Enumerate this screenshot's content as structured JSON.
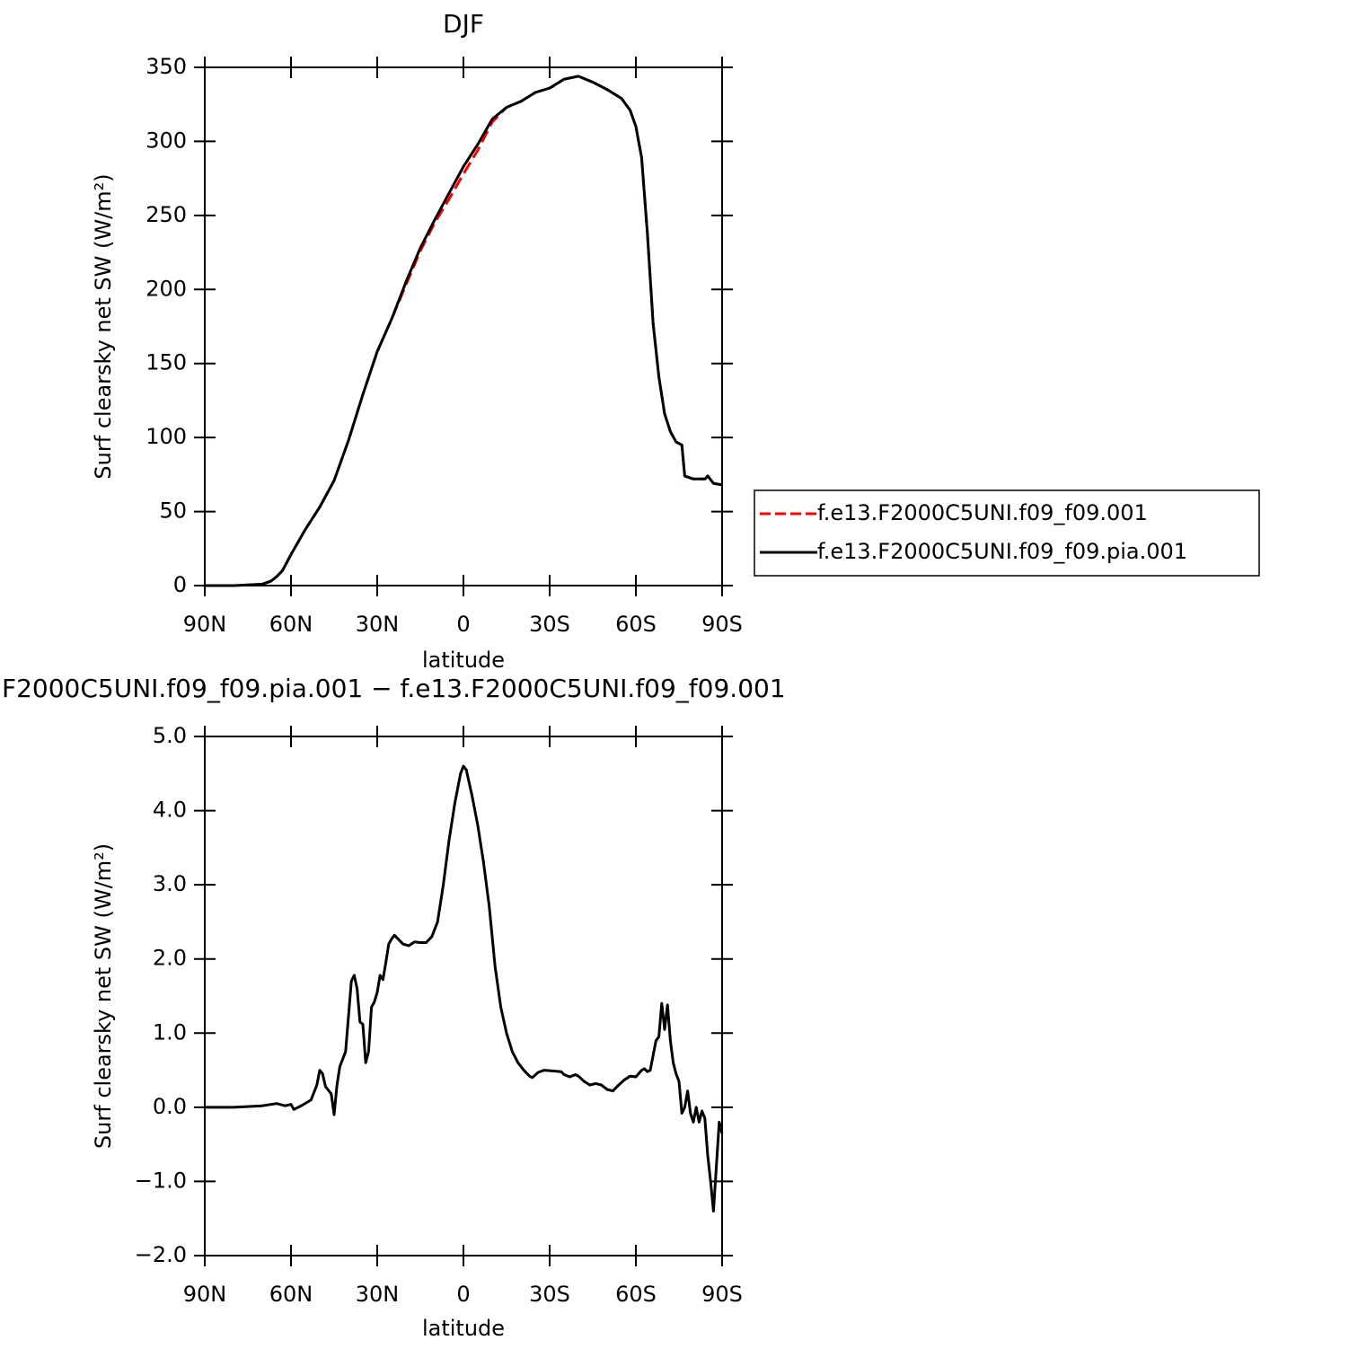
{
  "chart_data": [
    {
      "type": "line",
      "title": "DJF",
      "xlabel": "latitude",
      "ylabel": "Surf clearsky net SW (W/m²)",
      "x": [
        90,
        80,
        75,
        70,
        67,
        65,
        63,
        60,
        55,
        50,
        45,
        40,
        35,
        30,
        25,
        20,
        15,
        10,
        5,
        0,
        -5,
        -10,
        -15,
        -20,
        -25,
        -30,
        -35,
        -40,
        -45,
        -50,
        -55,
        -58,
        -60,
        -62,
        -64,
        -66,
        -68,
        -70,
        -72,
        -74,
        -76,
        -77,
        -80,
        -84,
        -85,
        -87,
        -90
      ],
      "series": [
        {
          "name": "f.e13.F2000C5UNI.f09_f09.001",
          "color": "#ff0000",
          "dashed": true,
          "values": [
            0,
            0,
            0.5,
            1,
            3,
            6,
            10,
            21,
            38,
            53,
            71,
            98,
            129,
            158,
            180,
            203,
            226,
            245,
            261,
            278,
            294,
            313,
            323,
            327,
            333,
            336,
            342,
            344,
            340,
            335,
            329,
            321,
            310,
            289,
            238,
            177,
            141,
            116,
            104,
            97,
            95,
            74,
            72,
            72,
            74,
            69,
            68
          ]
        },
        {
          "name": "f.e13.F2000C5UNI.f09_f09.pia.001",
          "color": "#000000",
          "dashed": false,
          "values": [
            0,
            0,
            0.5,
            1,
            3,
            6,
            10,
            21,
            38,
            53,
            71,
            98,
            129,
            158,
            180,
            205,
            228,
            247,
            265,
            283,
            298,
            315,
            323,
            327,
            333,
            336,
            342,
            344,
            340,
            335,
            329,
            321,
            310,
            289,
            238,
            177,
            141,
            116,
            104,
            97,
            95,
            74,
            72,
            72,
            74,
            69,
            68
          ]
        }
      ],
      "xlim": [
        90,
        -90
      ],
      "xticks": [
        {
          "value": 90,
          "label": "90N"
        },
        {
          "value": 60,
          "label": "60N"
        },
        {
          "value": 30,
          "label": "30N"
        },
        0,
        {
          "value": -30,
          "label": "30S"
        },
        {
          "value": -60,
          "label": "60S"
        },
        {
          "value": -90,
          "label": "90S"
        }
      ],
      "ylim": [
        0,
        350
      ],
      "yticks": [
        0,
        50,
        100,
        150,
        200,
        250,
        300,
        350
      ],
      "legend": "right"
    },
    {
      "type": "line",
      "title": "F2000C5UNI.f09_f09.pia.001 − f.e13.F2000C5UNI.f09_f09.001",
      "xlabel": "latitude",
      "ylabel": "Surf clearsky net SW (W/m²)",
      "x": [
        90,
        80,
        70,
        65,
        62,
        60,
        59,
        56,
        53,
        51,
        50,
        49,
        48,
        46,
        45,
        44,
        43,
        41,
        39,
        38,
        37,
        36,
        35,
        34,
        33,
        32,
        31,
        30,
        29,
        28,
        27,
        26,
        25,
        24,
        23,
        21,
        19,
        17,
        15,
        13,
        11,
        9,
        7,
        5,
        3,
        1,
        0,
        -1,
        -3,
        -5,
        -7,
        -9,
        -11,
        -13,
        -15,
        -17,
        -19,
        -21,
        -23,
        -24,
        -26,
        -28,
        -31,
        -34,
        -35,
        -37,
        -39,
        -40,
        -42,
        -44,
        -46,
        -48,
        -50,
        -52,
        -54,
        -56,
        -58,
        -60,
        -62,
        -63,
        -64,
        -65,
        -67,
        -68,
        -69,
        -70,
        -71,
        -72,
        -73,
        -74,
        -75,
        -76,
        -77,
        -78,
        -79,
        -80,
        -81,
        -82,
        -83,
        -84,
        -85,
        -86,
        -87,
        -88,
        -89,
        -90
      ],
      "values": [
        0,
        0,
        0.02,
        0.05,
        0.02,
        0.04,
        -0.03,
        0.03,
        0.1,
        0.3,
        0.5,
        0.45,
        0.28,
        0.18,
        -0.1,
        0.3,
        0.55,
        0.75,
        1.7,
        1.78,
        1.6,
        1.15,
        1.12,
        0.6,
        0.75,
        1.35,
        1.42,
        1.55,
        1.78,
        1.72,
        1.95,
        2.2,
        2.27,
        2.32,
        2.28,
        2.2,
        2.18,
        2.23,
        2.22,
        2.22,
        2.3,
        2.5,
        3.0,
        3.6,
        4.1,
        4.5,
        4.6,
        4.55,
        4.2,
        3.8,
        3.3,
        2.7,
        1.9,
        1.35,
        1.0,
        0.75,
        0.6,
        0.5,
        0.42,
        0.4,
        0.47,
        0.5,
        0.49,
        0.48,
        0.44,
        0.41,
        0.44,
        0.42,
        0.35,
        0.3,
        0.32,
        0.3,
        0.24,
        0.22,
        0.3,
        0.37,
        0.42,
        0.41,
        0.5,
        0.52,
        0.48,
        0.5,
        0.9,
        0.95,
        1.4,
        1.05,
        1.38,
        0.9,
        0.6,
        0.45,
        0.35,
        -0.08,
        0.0,
        0.22,
        -0.08,
        -0.2,
        0.0,
        -0.2,
        -0.05,
        -0.15,
        -0.65,
        -1.0,
        -1.4,
        -0.8,
        -0.2,
        -0.35
      ],
      "color": "#000000",
      "xlim": [
        90,
        -90
      ],
      "xticks": [
        {
          "value": 90,
          "label": "90N"
        },
        {
          "value": 60,
          "label": "60N"
        },
        {
          "value": 30,
          "label": "30N"
        },
        0,
        {
          "value": -30,
          "label": "30S"
        },
        {
          "value": -60,
          "label": "60S"
        },
        {
          "value": -90,
          "label": "90S"
        }
      ],
      "ylim": [
        -2,
        5
      ],
      "yticks": [
        {
          "value": -2,
          "label": "−2.0"
        },
        {
          "value": -1,
          "label": "−1.0"
        },
        {
          "value": 0,
          "label": "0.0"
        },
        {
          "value": 1,
          "label": "1.0"
        },
        {
          "value": 2,
          "label": "2.0"
        },
        {
          "value": 3,
          "label": "3.0"
        },
        {
          "value": 4,
          "label": "4.0"
        },
        {
          "value": 5,
          "label": "5.0"
        }
      ]
    }
  ]
}
